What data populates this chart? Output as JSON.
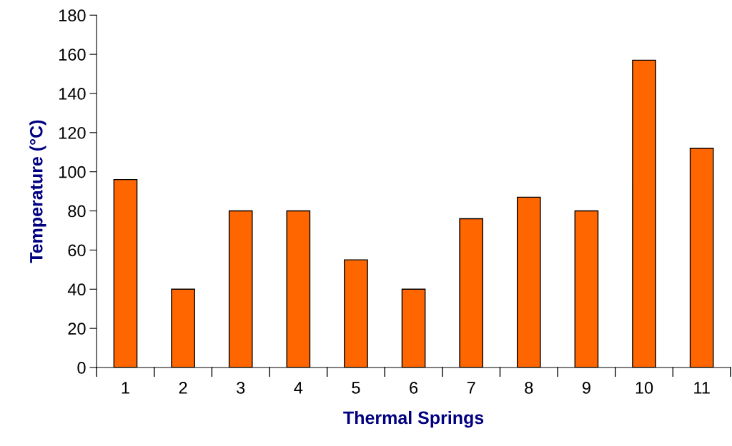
{
  "chart_data": {
    "type": "bar",
    "xlabel": "Thermal Springs",
    "ylabel": "Temperature (°C)",
    "categories": [
      "1",
      "2",
      "3",
      "4",
      "5",
      "6",
      "7",
      "8",
      "9",
      "10",
      "11"
    ],
    "values": [
      96,
      40,
      80,
      80,
      55,
      40,
      76,
      87,
      80,
      157,
      112
    ],
    "color": "#ff6600",
    "ylim": [
      0,
      180
    ],
    "yticks": [
      0,
      20,
      40,
      60,
      80,
      100,
      120,
      140,
      160,
      180
    ],
    "grid": false,
    "legend": false
  }
}
